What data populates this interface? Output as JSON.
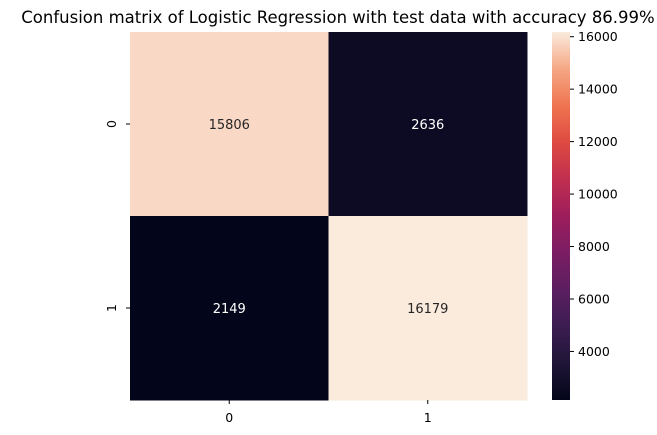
{
  "chart_data": {
    "type": "heatmap",
    "title": "Confusion matrix of Logistic Regression with test data with accuracy 86.99%",
    "xlabel": "",
    "ylabel": "",
    "x_categories": [
      "0",
      "1"
    ],
    "y_categories": [
      "0",
      "1"
    ],
    "values": [
      [
        15806,
        2636
      ],
      [
        2149,
        16179
      ]
    ],
    "colorbar": {
      "min": 2149,
      "max": 16179,
      "ticks": [
        4000,
        6000,
        8000,
        10000,
        12000,
        14000,
        16000
      ],
      "colormap": "rocket"
    },
    "colors": {
      "low": "#03051a",
      "high": "#faebdd",
      "text_on_dark": "#ffffff",
      "text_on_light": "#262626"
    },
    "grid": false,
    "legend": "none"
  }
}
